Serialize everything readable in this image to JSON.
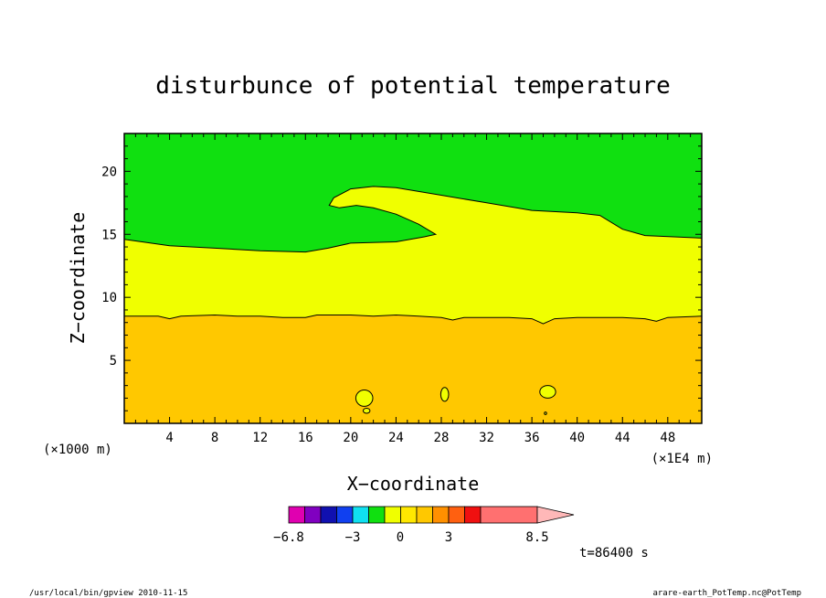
{
  "chart_data": {
    "type": "heatmap",
    "title": "disturbunce of potential temperature",
    "xlabel": "X−coordinate",
    "ylabel": "Z−coordinate",
    "x_unit_left": "(×1000 m)",
    "x_unit_right": "(×1E4 m)",
    "xlim": [
      0,
      51
    ],
    "ylim": [
      0,
      23
    ],
    "x_ticks": [
      4,
      8,
      12,
      16,
      20,
      24,
      28,
      32,
      36,
      40,
      44,
      48
    ],
    "y_ticks": [
      5,
      10,
      15,
      20
    ],
    "colorbar": {
      "labels": [
        {
          "value": -6.8,
          "text": "−6.8"
        },
        {
          "value": -3,
          "text": "−3"
        },
        {
          "value": 0,
          "text": "0"
        },
        {
          "value": 3,
          "text": "3"
        },
        {
          "value": 8.5,
          "text": "8.5"
        }
      ],
      "colors": [
        "#e000b0",
        "#8000c0",
        "#1010b0",
        "#1040f0",
        "#10e0f0",
        "#10e010",
        "#f0ff00",
        "#ffe800",
        "#ffc800",
        "#ff9000",
        "#ff6010",
        "#f01010",
        "#ff7070",
        "#ffb8b8"
      ]
    },
    "regions": [
      {
        "level": "upper",
        "color": "#10e010"
      },
      {
        "level": "middle",
        "color": "#f0ff00"
      },
      {
        "level": "lower",
        "color": "#ffc800"
      }
    ],
    "boundaries": {
      "upper": [
        [
          0,
          14.6
        ],
        [
          4,
          14.1
        ],
        [
          8,
          13.9
        ],
        [
          12,
          13.7
        ],
        [
          16,
          13.6
        ],
        [
          18,
          13.9
        ],
        [
          20,
          14.3
        ],
        [
          24,
          14.4
        ],
        [
          26.5,
          14.8
        ],
        [
          27.5,
          15.0
        ],
        [
          26,
          15.8
        ],
        [
          24,
          16.6
        ],
        [
          22,
          17.1
        ],
        [
          20.5,
          17.3
        ],
        [
          19,
          17.1
        ],
        [
          18.1,
          17.3
        ],
        [
          18.5,
          17.9
        ],
        [
          20,
          18.6
        ],
        [
          22,
          18.8
        ],
        [
          24,
          18.7
        ],
        [
          28,
          18.1
        ],
        [
          32,
          17.5
        ],
        [
          36,
          16.9
        ],
        [
          40,
          16.7
        ],
        [
          42,
          16.5
        ],
        [
          44,
          15.4
        ],
        [
          46,
          14.9
        ],
        [
          51,
          14.7
        ]
      ],
      "lower": [
        [
          0,
          8.5
        ],
        [
          2,
          8.5
        ],
        [
          3,
          8.5
        ],
        [
          4,
          8.3
        ],
        [
          5,
          8.5
        ],
        [
          8,
          8.6
        ],
        [
          10,
          8.5
        ],
        [
          12,
          8.5
        ],
        [
          14,
          8.4
        ],
        [
          16,
          8.4
        ],
        [
          17,
          8.6
        ],
        [
          20,
          8.6
        ],
        [
          22,
          8.5
        ],
        [
          24,
          8.6
        ],
        [
          26,
          8.5
        ],
        [
          28,
          8.4
        ],
        [
          29,
          8.2
        ],
        [
          30,
          8.4
        ],
        [
          34,
          8.4
        ],
        [
          36,
          8.3
        ],
        [
          37,
          7.9
        ],
        [
          38,
          8.3
        ],
        [
          40,
          8.4
        ],
        [
          44,
          8.4
        ],
        [
          46,
          8.3
        ],
        [
          47,
          8.1
        ],
        [
          48,
          8.4
        ],
        [
          51,
          8.5
        ]
      ]
    },
    "bubbles": [
      {
        "x": 21.2,
        "z": 2.0,
        "rx": 0.75,
        "rz": 0.65
      },
      {
        "x": 28.3,
        "z": 2.3,
        "rx": 0.35,
        "rz": 0.55
      },
      {
        "x": 37.4,
        "z": 2.5,
        "rx": 0.7,
        "rz": 0.5
      },
      {
        "x": 21.4,
        "z": 1.0,
        "rx": 0.3,
        "rz": 0.2
      },
      {
        "x": 37.2,
        "z": 0.8,
        "rx": 0.1,
        "rz": 0.1
      }
    ]
  },
  "annotations": {
    "time_label": "t=86400 s",
    "footer_left": "/usr/local/bin/gpview  2010-11-15",
    "footer_right": "arare-earth_PotTemp.nc@PotTemp"
  }
}
